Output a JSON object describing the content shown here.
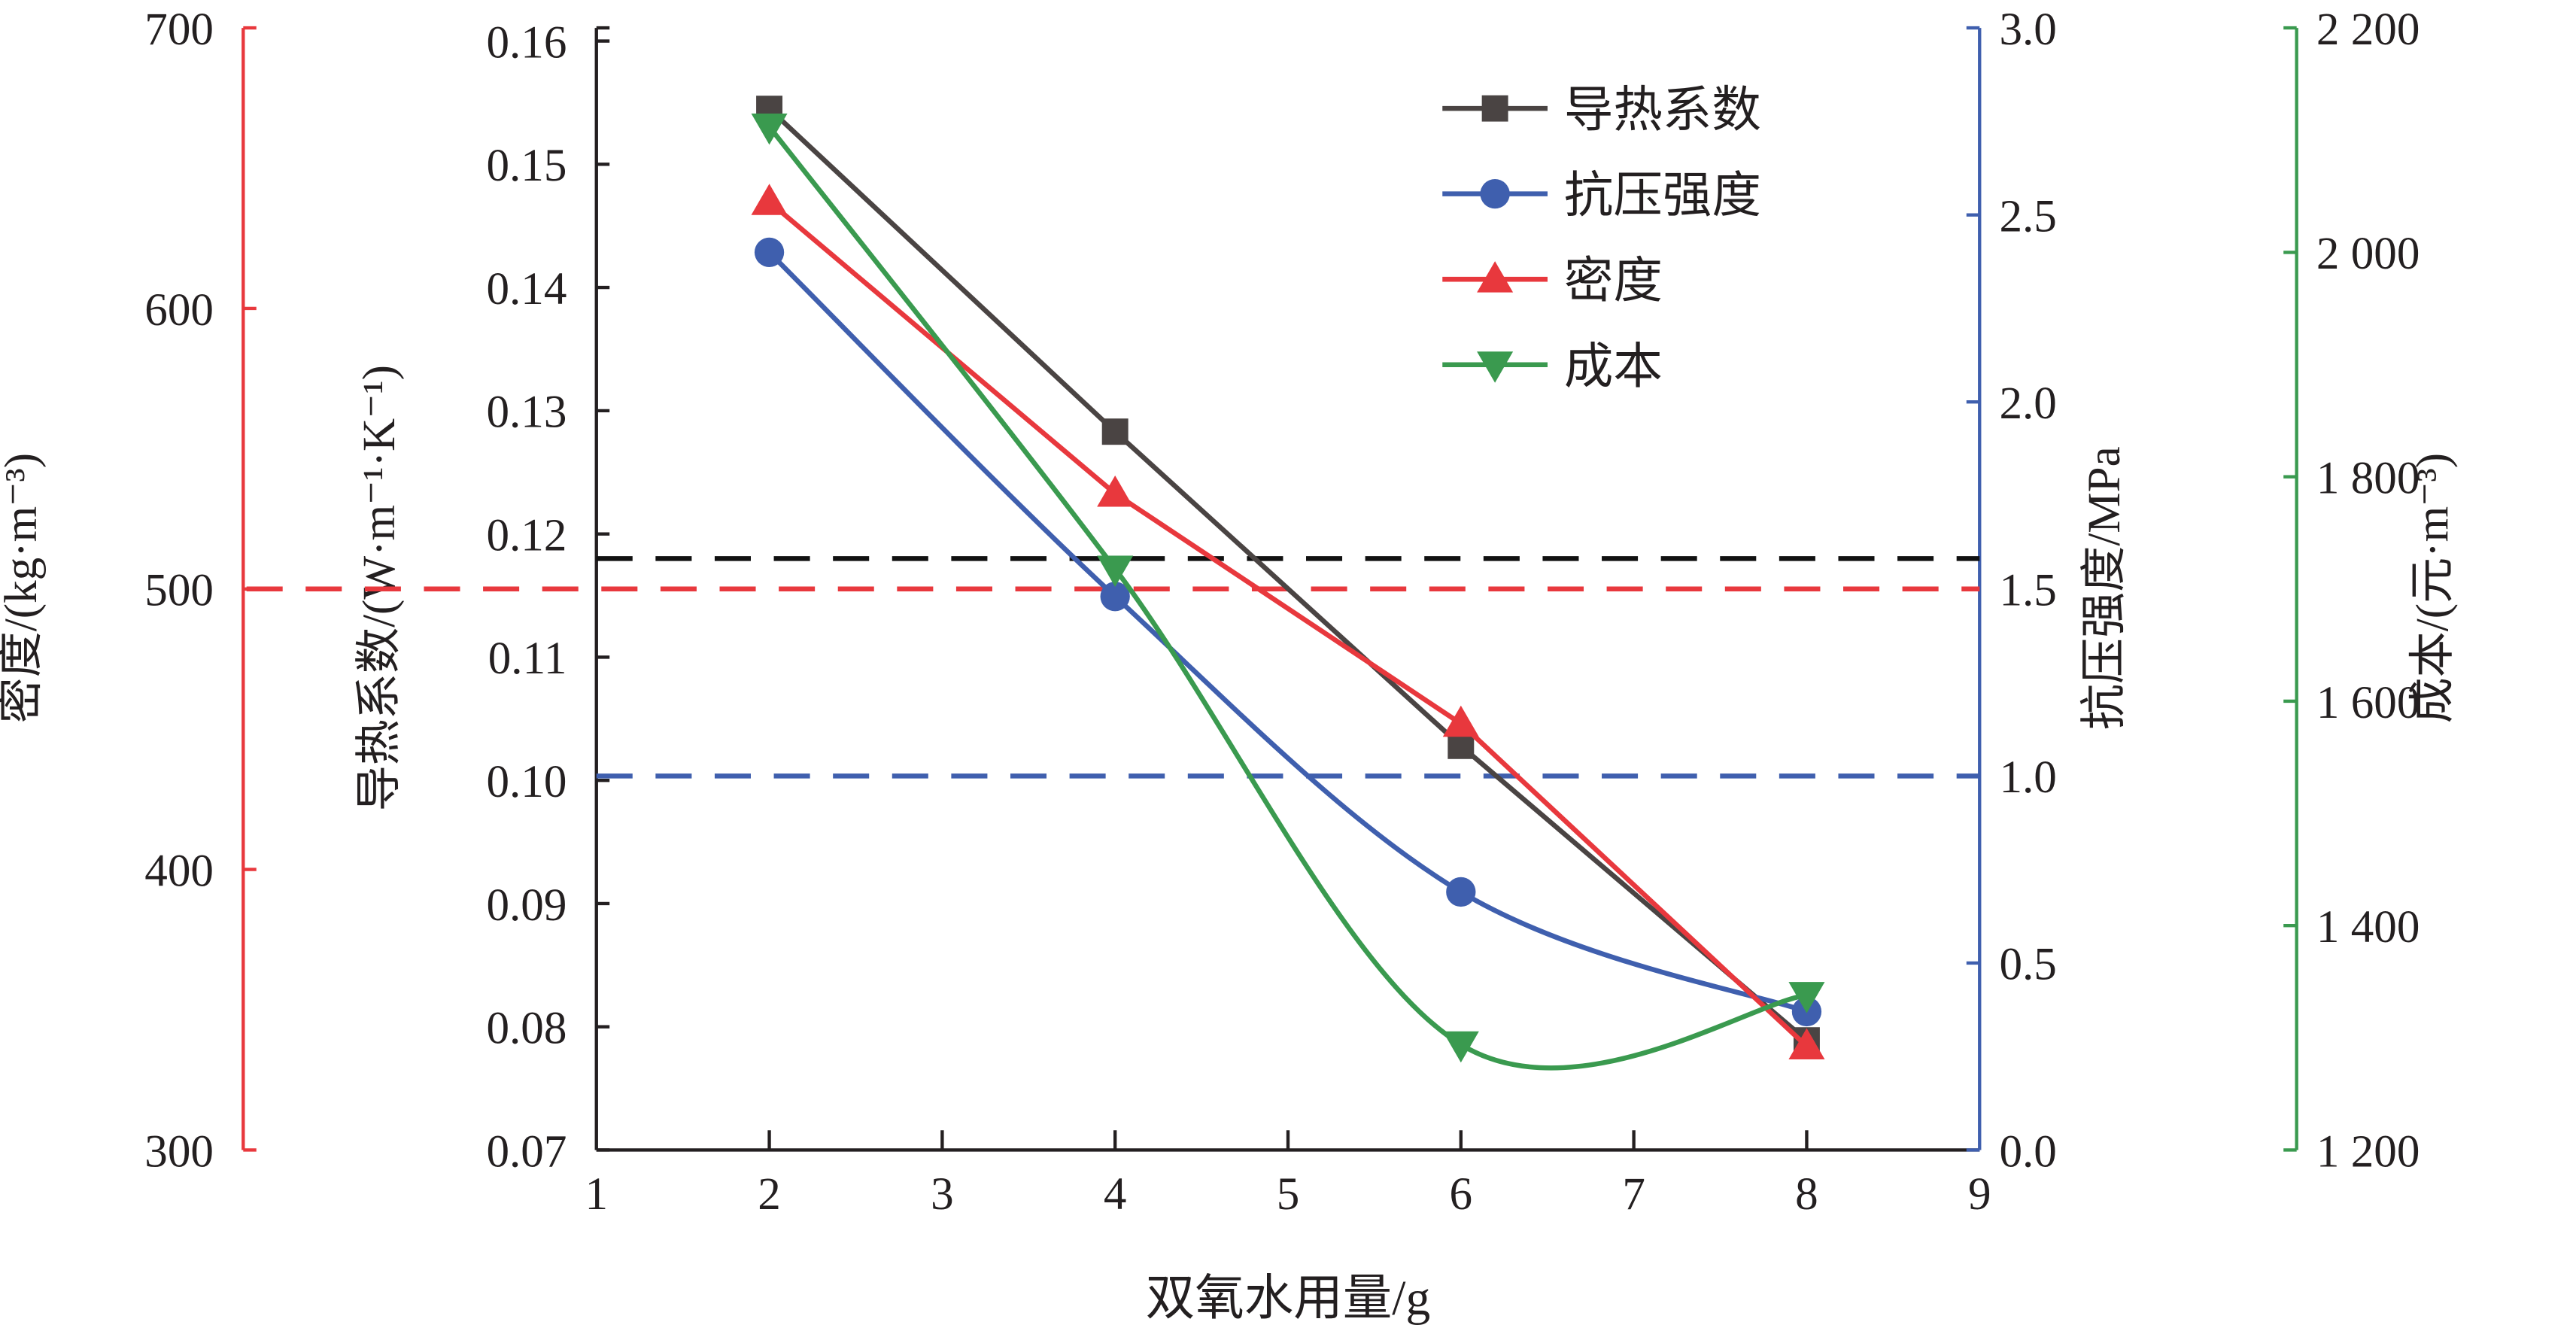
{
  "chart_data": {
    "type": "line",
    "xlabel": "双氧水用量/g",
    "xlim": [
      1,
      9
    ],
    "xticks": [
      1,
      2,
      3,
      4,
      5,
      6,
      7,
      8,
      9
    ],
    "x": [
      2,
      4,
      6,
      8
    ],
    "axes": [
      {
        "id": "thermal",
        "label": "导热系数/(W·m⁻¹·K⁻¹)",
        "side": "left-inner",
        "range": [
          0.07,
          0.16
        ],
        "ticks": [
          "0.07",
          "0.08",
          "0.09",
          "0.10",
          "0.11",
          "0.12",
          "0.13",
          "0.14",
          "0.15",
          "0.16"
        ],
        "color": "#231f20"
      },
      {
        "id": "density",
        "label": "密度/(kg·m⁻³)",
        "side": "left-outer",
        "range": [
          300,
          700
        ],
        "ticks": [
          "300",
          "400",
          "500",
          "600",
          "700"
        ],
        "color": "#e8383d"
      },
      {
        "id": "strength",
        "label": "抗压强度/MPa",
        "side": "right-inner",
        "range": [
          0,
          3
        ],
        "ticks": [
          "0.0",
          "0.5",
          "1.0",
          "1.5",
          "2.0",
          "2.5",
          "3.0"
        ],
        "color": "#3f5fae"
      },
      {
        "id": "cost",
        "label": "成本/(元·m⁻³)",
        "side": "right-outer",
        "range": [
          1200,
          2200
        ],
        "ticks": [
          "1 200",
          "1 400",
          "1 600",
          "1 800",
          "2 000",
          "2 200"
        ],
        "color": "#3a9a4f"
      }
    ],
    "series": [
      {
        "name": "导热系数",
        "axis": "thermal",
        "values": [
          0.1545,
          0.1283,
          0.1028,
          0.0789
        ],
        "color": "#4a4443",
        "marker": "square",
        "smooth": false
      },
      {
        "name": "抗压强度",
        "axis": "strength",
        "values": [
          2.4,
          1.48,
          0.69,
          0.37
        ],
        "color": "#3f5fae",
        "marker": "circle",
        "smooth": true
      },
      {
        "name": "密度",
        "axis": "density",
        "values": [
          638,
          534,
          452,
          337
        ],
        "color": "#e8383d",
        "marker": "triangle-up",
        "smooth": false
      },
      {
        "name": "成本",
        "axis": "cost",
        "values": [
          2112,
          1718,
          1294,
          1338
        ],
        "color": "#3a9a4f",
        "marker": "triangle-down",
        "smooth": true
      }
    ],
    "reference_lines": [
      {
        "axis": "thermal",
        "value": 0.118,
        "color": "#111111"
      },
      {
        "axis": "density",
        "value": 500,
        "color": "#e8383d"
      },
      {
        "axis": "strength",
        "value": 1.0,
        "color": "#3f5fae"
      }
    ],
    "legend_position": "top-right"
  }
}
